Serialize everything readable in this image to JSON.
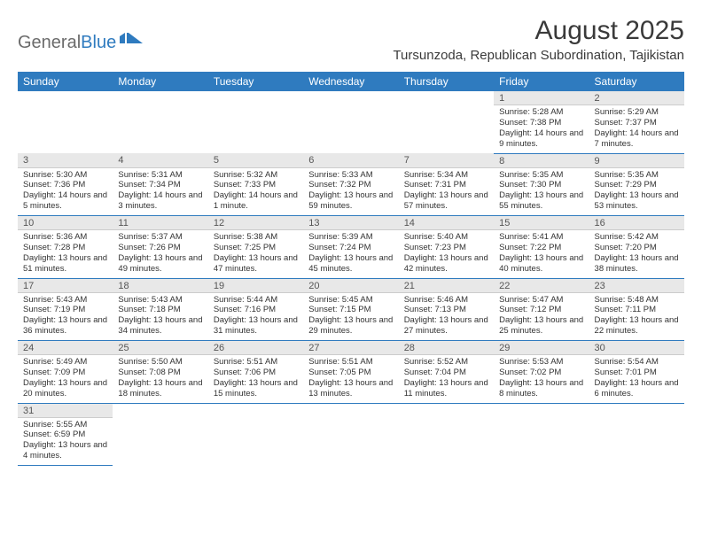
{
  "logo": {
    "general": "General",
    "blue": "Blue"
  },
  "title": "August 2025",
  "location": "Tursunzoda, Republican Subordination, Tajikistan",
  "colors": {
    "header_bg": "#2f7bbf",
    "header_text": "#ffffff",
    "daynum_bg": "#e8e8e8",
    "row_border": "#2f7bbf",
    "text": "#333333"
  },
  "dayHeaders": [
    "Sunday",
    "Monday",
    "Tuesday",
    "Wednesday",
    "Thursday",
    "Friday",
    "Saturday"
  ],
  "weeks": [
    [
      null,
      null,
      null,
      null,
      null,
      {
        "n": "1",
        "sr": "Sunrise: 5:28 AM",
        "ss": "Sunset: 7:38 PM",
        "dl": "Daylight: 14 hours and 9 minutes."
      },
      {
        "n": "2",
        "sr": "Sunrise: 5:29 AM",
        "ss": "Sunset: 7:37 PM",
        "dl": "Daylight: 14 hours and 7 minutes."
      }
    ],
    [
      {
        "n": "3",
        "sr": "Sunrise: 5:30 AM",
        "ss": "Sunset: 7:36 PM",
        "dl": "Daylight: 14 hours and 5 minutes."
      },
      {
        "n": "4",
        "sr": "Sunrise: 5:31 AM",
        "ss": "Sunset: 7:34 PM",
        "dl": "Daylight: 14 hours and 3 minutes."
      },
      {
        "n": "5",
        "sr": "Sunrise: 5:32 AM",
        "ss": "Sunset: 7:33 PM",
        "dl": "Daylight: 14 hours and 1 minute."
      },
      {
        "n": "6",
        "sr": "Sunrise: 5:33 AM",
        "ss": "Sunset: 7:32 PM",
        "dl": "Daylight: 13 hours and 59 minutes."
      },
      {
        "n": "7",
        "sr": "Sunrise: 5:34 AM",
        "ss": "Sunset: 7:31 PM",
        "dl": "Daylight: 13 hours and 57 minutes."
      },
      {
        "n": "8",
        "sr": "Sunrise: 5:35 AM",
        "ss": "Sunset: 7:30 PM",
        "dl": "Daylight: 13 hours and 55 minutes."
      },
      {
        "n": "9",
        "sr": "Sunrise: 5:35 AM",
        "ss": "Sunset: 7:29 PM",
        "dl": "Daylight: 13 hours and 53 minutes."
      }
    ],
    [
      {
        "n": "10",
        "sr": "Sunrise: 5:36 AM",
        "ss": "Sunset: 7:28 PM",
        "dl": "Daylight: 13 hours and 51 minutes."
      },
      {
        "n": "11",
        "sr": "Sunrise: 5:37 AM",
        "ss": "Sunset: 7:26 PM",
        "dl": "Daylight: 13 hours and 49 minutes."
      },
      {
        "n": "12",
        "sr": "Sunrise: 5:38 AM",
        "ss": "Sunset: 7:25 PM",
        "dl": "Daylight: 13 hours and 47 minutes."
      },
      {
        "n": "13",
        "sr": "Sunrise: 5:39 AM",
        "ss": "Sunset: 7:24 PM",
        "dl": "Daylight: 13 hours and 45 minutes."
      },
      {
        "n": "14",
        "sr": "Sunrise: 5:40 AM",
        "ss": "Sunset: 7:23 PM",
        "dl": "Daylight: 13 hours and 42 minutes."
      },
      {
        "n": "15",
        "sr": "Sunrise: 5:41 AM",
        "ss": "Sunset: 7:22 PM",
        "dl": "Daylight: 13 hours and 40 minutes."
      },
      {
        "n": "16",
        "sr": "Sunrise: 5:42 AM",
        "ss": "Sunset: 7:20 PM",
        "dl": "Daylight: 13 hours and 38 minutes."
      }
    ],
    [
      {
        "n": "17",
        "sr": "Sunrise: 5:43 AM",
        "ss": "Sunset: 7:19 PM",
        "dl": "Daylight: 13 hours and 36 minutes."
      },
      {
        "n": "18",
        "sr": "Sunrise: 5:43 AM",
        "ss": "Sunset: 7:18 PM",
        "dl": "Daylight: 13 hours and 34 minutes."
      },
      {
        "n": "19",
        "sr": "Sunrise: 5:44 AM",
        "ss": "Sunset: 7:16 PM",
        "dl": "Daylight: 13 hours and 31 minutes."
      },
      {
        "n": "20",
        "sr": "Sunrise: 5:45 AM",
        "ss": "Sunset: 7:15 PM",
        "dl": "Daylight: 13 hours and 29 minutes."
      },
      {
        "n": "21",
        "sr": "Sunrise: 5:46 AM",
        "ss": "Sunset: 7:13 PM",
        "dl": "Daylight: 13 hours and 27 minutes."
      },
      {
        "n": "22",
        "sr": "Sunrise: 5:47 AM",
        "ss": "Sunset: 7:12 PM",
        "dl": "Daylight: 13 hours and 25 minutes."
      },
      {
        "n": "23",
        "sr": "Sunrise: 5:48 AM",
        "ss": "Sunset: 7:11 PM",
        "dl": "Daylight: 13 hours and 22 minutes."
      }
    ],
    [
      {
        "n": "24",
        "sr": "Sunrise: 5:49 AM",
        "ss": "Sunset: 7:09 PM",
        "dl": "Daylight: 13 hours and 20 minutes."
      },
      {
        "n": "25",
        "sr": "Sunrise: 5:50 AM",
        "ss": "Sunset: 7:08 PM",
        "dl": "Daylight: 13 hours and 18 minutes."
      },
      {
        "n": "26",
        "sr": "Sunrise: 5:51 AM",
        "ss": "Sunset: 7:06 PM",
        "dl": "Daylight: 13 hours and 15 minutes."
      },
      {
        "n": "27",
        "sr": "Sunrise: 5:51 AM",
        "ss": "Sunset: 7:05 PM",
        "dl": "Daylight: 13 hours and 13 minutes."
      },
      {
        "n": "28",
        "sr": "Sunrise: 5:52 AM",
        "ss": "Sunset: 7:04 PM",
        "dl": "Daylight: 13 hours and 11 minutes."
      },
      {
        "n": "29",
        "sr": "Sunrise: 5:53 AM",
        "ss": "Sunset: 7:02 PM",
        "dl": "Daylight: 13 hours and 8 minutes."
      },
      {
        "n": "30",
        "sr": "Sunrise: 5:54 AM",
        "ss": "Sunset: 7:01 PM",
        "dl": "Daylight: 13 hours and 6 minutes."
      }
    ],
    [
      {
        "n": "31",
        "sr": "Sunrise: 5:55 AM",
        "ss": "Sunset: 6:59 PM",
        "dl": "Daylight: 13 hours and 4 minutes."
      },
      null,
      null,
      null,
      null,
      null,
      null
    ]
  ]
}
